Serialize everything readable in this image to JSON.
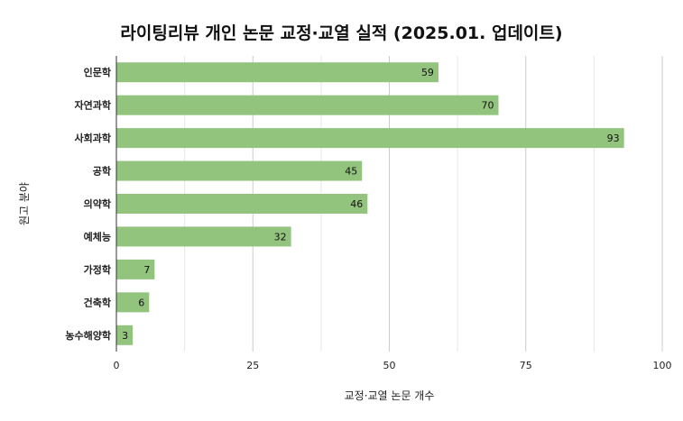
{
  "chart_data": {
    "type": "bar",
    "orientation": "horizontal",
    "title": "라이팅리뷰 개인 논문 교정·교열 실적 (2025.01. 업데이트)",
    "xlabel": "교정·교열 논문 개수",
    "ylabel": "원고 분야",
    "categories": [
      "인문학",
      "자연과학",
      "사회과학",
      "공학",
      "의약학",
      "예체능",
      "가정학",
      "건축학",
      "농수해양학"
    ],
    "values": [
      59,
      70,
      93,
      45,
      46,
      32,
      7,
      6,
      3
    ],
    "xlim": [
      0,
      100
    ],
    "xticks": [
      0,
      25,
      50,
      75,
      100
    ],
    "grid": true,
    "bar_color": "#93c47d"
  }
}
